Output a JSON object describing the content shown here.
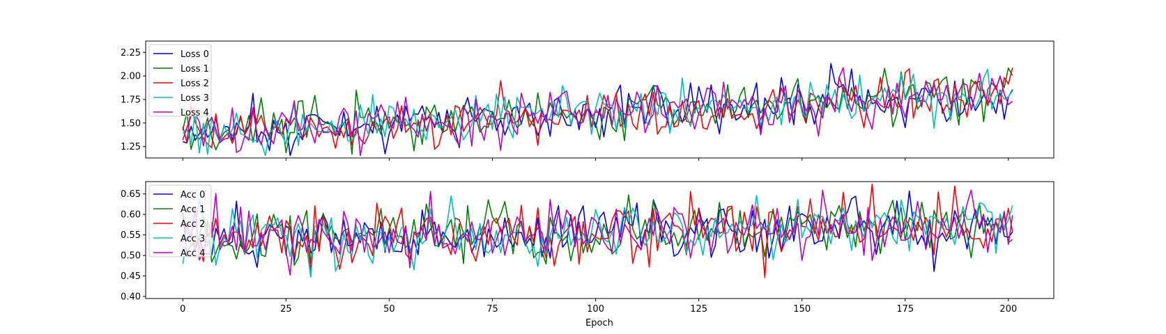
{
  "chart_data": [
    {
      "type": "line",
      "title": "",
      "xlabel": "",
      "ylabel": "",
      "xlim": [
        -9,
        211
      ],
      "ylim": [
        1.13,
        2.37
      ],
      "xticks": [
        0,
        25,
        50,
        75,
        100,
        125,
        150,
        175,
        200
      ],
      "yticks": [
        1.25,
        1.5,
        1.75,
        2.0,
        2.25
      ],
      "ytick_labels": [
        "1.25",
        "1.50",
        "1.75",
        "2.00",
        "2.25"
      ],
      "show_xtick_labels": false,
      "grid": false,
      "legend_position": "upper-left",
      "series": [
        {
          "name": "Loss 0",
          "color": "#0000ff"
        },
        {
          "name": "Loss 1",
          "color": "#008000"
        },
        {
          "name": "Loss 2",
          "color": "#ff0000"
        },
        {
          "name": "Loss 3",
          "color": "#00bfbf"
        },
        {
          "name": "Loss 4",
          "color": "#bf00bf"
        }
      ],
      "trend": {
        "start": 1.38,
        "end": 1.83,
        "noise": 0.17,
        "offset": 0
      },
      "num_points": 202
    },
    {
      "type": "line",
      "title": "",
      "xlabel": "Epoch",
      "ylabel": "",
      "xlim": [
        -9,
        211
      ],
      "ylim": [
        0.395,
        0.68
      ],
      "xticks": [
        0,
        25,
        50,
        75,
        100,
        125,
        150,
        175,
        200
      ],
      "xtick_labels": [
        "0",
        "25",
        "50",
        "75",
        "100",
        "125",
        "150",
        "175",
        "200"
      ],
      "yticks": [
        0.4,
        0.45,
        0.5,
        0.55,
        0.6,
        0.65
      ],
      "ytick_labels": [
        "0.40",
        "0.45",
        "0.50",
        "0.55",
        "0.60",
        "0.65"
      ],
      "show_xtick_labels": true,
      "grid": false,
      "legend_position": "upper-left",
      "series": [
        {
          "name": "Acc 0",
          "color": "#0000ff"
        },
        {
          "name": "Acc 1",
          "color": "#008000"
        },
        {
          "name": "Acc 2",
          "color": "#ff0000"
        },
        {
          "name": "Acc 3",
          "color": "#00bfbf"
        },
        {
          "name": "Acc 4",
          "color": "#bf00bf"
        }
      ],
      "trend": {
        "start": 0.54,
        "end": 0.575,
        "noise": 0.045,
        "offset": 0
      },
      "num_points": 202
    }
  ]
}
